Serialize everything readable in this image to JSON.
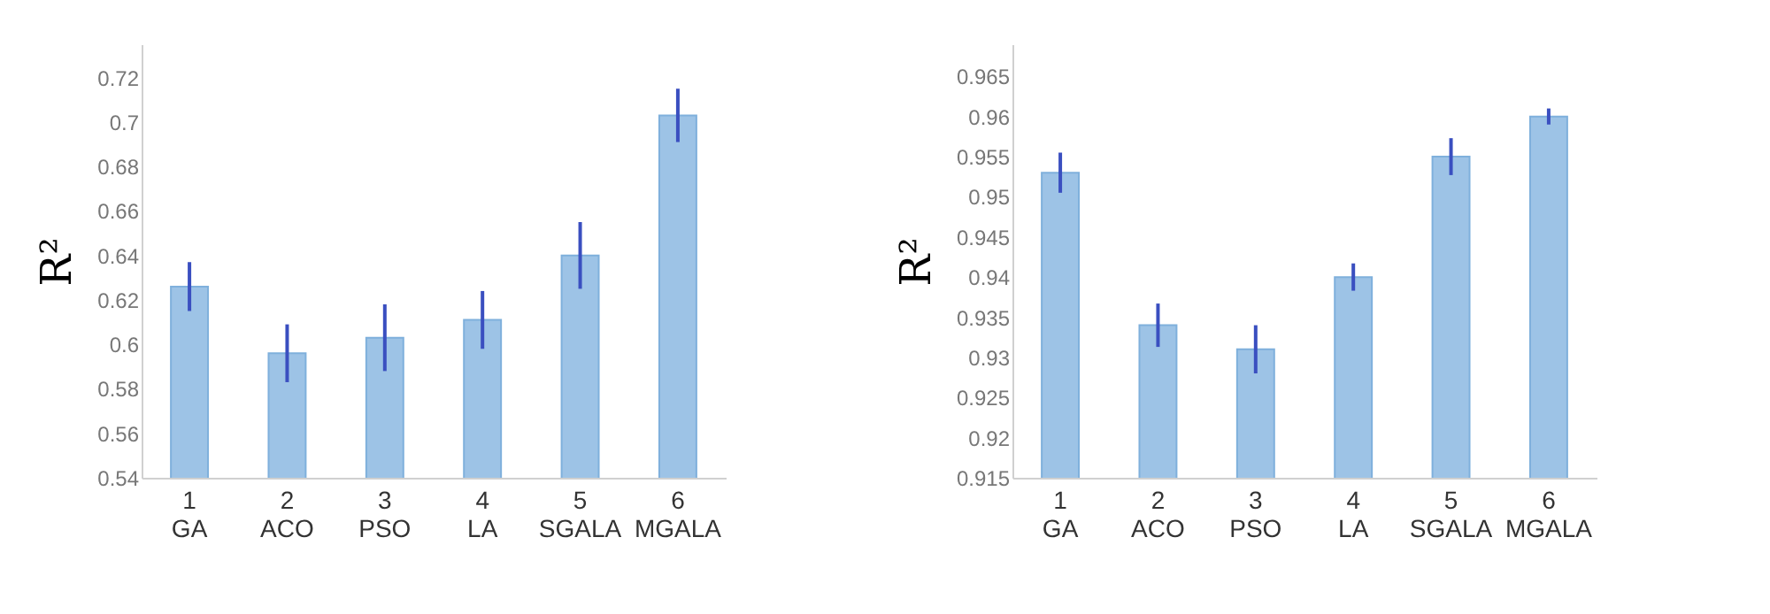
{
  "chart_data": [
    {
      "type": "bar",
      "ylabel": "R²",
      "categories": [
        "1\nGA",
        "2\nACO",
        "3\nPSO",
        "4\nLA",
        "5\nSGALA",
        "6\nMGALA"
      ],
      "series": [
        {
          "color": "#9dc3e6",
          "values": [
            0.626,
            0.596,
            0.603,
            0.611,
            0.64,
            0.703
          ],
          "errors": [
            0.011,
            0.013,
            0.015,
            0.013,
            0.015,
            0.012
          ]
        }
      ],
      "ylim": [
        0.54,
        0.735
      ],
      "yticks": [
        0.54,
        0.56,
        0.58,
        0.6,
        0.62,
        0.64,
        0.66,
        0.68,
        0.7,
        0.72
      ],
      "grid": false,
      "legend": false
    },
    {
      "type": "bar",
      "ylabel": "R²",
      "categories": [
        "1\nGA",
        "2\nACO",
        "3\nPSO",
        "4\nLA",
        "5\nSGALA",
        "6\nMGALA"
      ],
      "series": [
        {
          "color": "#9dc3e6",
          "values": [
            0.953,
            0.934,
            0.931,
            0.94,
            0.955,
            0.96
          ],
          "errors": [
            0.0025,
            0.0027,
            0.003,
            0.0017,
            0.0023,
            0.001
          ]
        }
      ],
      "ylim": [
        0.915,
        0.969
      ],
      "yticks": [
        0.915,
        0.92,
        0.925,
        0.93,
        0.935,
        0.94,
        0.945,
        0.95,
        0.955,
        0.96,
        0.965
      ],
      "grid": false,
      "legend": false
    }
  ]
}
